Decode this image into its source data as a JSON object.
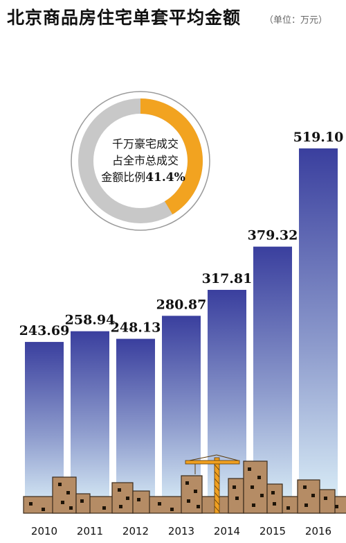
{
  "title": "北京商品房住宅单套平均金额",
  "unit": "（单位：万元）",
  "chart_data": {
    "type": "bar",
    "title": "北京商品房住宅单套平均金额",
    "unit": "万元",
    "categories": [
      "2010",
      "2011",
      "2012",
      "2013",
      "2014",
      "2015",
      "2016"
    ],
    "values": [
      243.69,
      258.94,
      248.13,
      280.87,
      317.81,
      379.32,
      519.1
    ],
    "value_labels": [
      "243.69",
      "258.94",
      "248.13",
      "280.87",
      "317.81",
      "379.32",
      "519.10"
    ],
    "ylim": [
      0,
      540
    ],
    "grid": false,
    "colors": {
      "bar_top": "#3a3f9e",
      "bar_bottom": "#dff3fa",
      "city": "#b58c65",
      "crane": "#f0a020",
      "donut_part": "#f2a320",
      "donut_rest": "#c8c8c8"
    }
  },
  "inset": {
    "type": "pie",
    "line1": "千万豪宅成交",
    "line2": "占全市总成交",
    "line3_prefix": "金额比例",
    "value_label": "41.4%",
    "value": 41.4
  }
}
